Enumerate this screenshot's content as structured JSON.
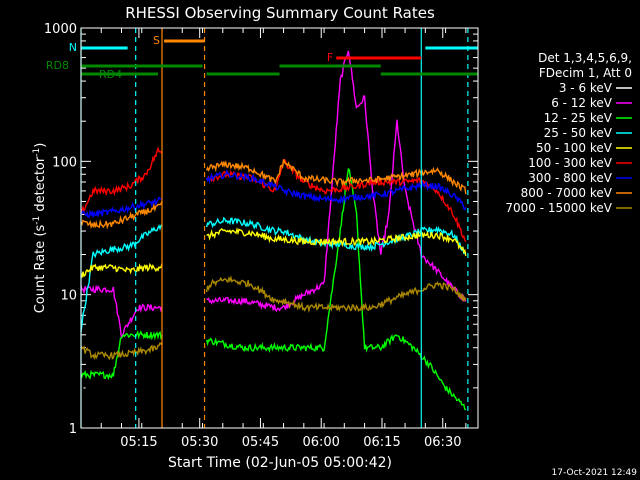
{
  "chart_data": {
    "type": "line",
    "title": "RHESSI Observing Summary Count Rates",
    "xlabel": "Start Time (02-Jun-05 05:00:42)",
    "ylabel": "Count Rate (s⁻¹ detector⁻¹)",
    "ylabel_text": "Count Rate (s",
    "ylabel_sup1": "-1",
    "ylabel_mid": " detector",
    "ylabel_sup2": "-1",
    "ylabel_end": ")",
    "yscale": "log",
    "ylim": [
      1,
      1000
    ],
    "xlim_minutes": [
      0,
      98
    ],
    "x_ticks": [
      {
        "label": "05:15",
        "min": 14.3
      },
      {
        "label": "05:30",
        "min": 29.3
      },
      {
        "label": "05:45",
        "min": 44.3
      },
      {
        "label": "06:00",
        "min": 59.3
      },
      {
        "label": "06:15",
        "min": 74.3
      },
      {
        "label": "06:30",
        "min": 89.3
      }
    ],
    "y_ticks": [
      {
        "label": "1",
        "value": 1
      },
      {
        "label": "10",
        "value": 10
      },
      {
        "label": "100",
        "value": 100
      },
      {
        "label": "1000",
        "value": 1000
      }
    ],
    "legend_header": [
      "Det 1,3,4,5,6,9,",
      "FDecim 1, Att 0"
    ],
    "series": [
      {
        "name": "3 - 6 keV",
        "color": "#000000",
        "values": [
          [
            0,
            2
          ],
          [
            8,
            2
          ],
          [
            10,
            1.4
          ],
          [
            14,
            1.4
          ],
          [
            19,
            1.4
          ],
          [
            32,
            7
          ],
          [
            40,
            7
          ],
          [
            48,
            6
          ],
          [
            50,
            3
          ],
          [
            55,
            4
          ],
          [
            60,
            6
          ],
          [
            64,
            250
          ],
          [
            66,
            420
          ],
          [
            68,
            150
          ],
          [
            70,
            140
          ],
          [
            72,
            40
          ],
          [
            74,
            14
          ],
          [
            76,
            20
          ],
          [
            78,
            70
          ],
          [
            80,
            30
          ],
          [
            84,
            8
          ],
          [
            88,
            6
          ],
          [
            92,
            4
          ],
          [
            95,
            3
          ]
        ]
      },
      {
        "name": "6 - 12 keV",
        "color": "#ff00ff",
        "values": [
          [
            0,
            11
          ],
          [
            8,
            11
          ],
          [
            10,
            5
          ],
          [
            14,
            8
          ],
          [
            19,
            8
          ],
          [
            32,
            9
          ],
          [
            40,
            9
          ],
          [
            48,
            8
          ],
          [
            50,
            8
          ],
          [
            55,
            10
          ],
          [
            60,
            12
          ],
          [
            64,
            400
          ],
          [
            66,
            700
          ],
          [
            68,
            250
          ],
          [
            70,
            300
          ],
          [
            72,
            60
          ],
          [
            74,
            20
          ],
          [
            76,
            40
          ],
          [
            78,
            200
          ],
          [
            80,
            60
          ],
          [
            84,
            20
          ],
          [
            88,
            15
          ],
          [
            92,
            11
          ],
          [
            95,
            9
          ]
        ]
      },
      {
        "name": "12 - 25 keV",
        "color": "#00ff00",
        "values": [
          [
            0,
            2.5
          ],
          [
            8,
            2.5
          ],
          [
            10,
            5
          ],
          [
            14,
            5
          ],
          [
            19,
            5
          ],
          [
            32,
            4.5
          ],
          [
            40,
            4
          ],
          [
            48,
            4
          ],
          [
            50,
            4
          ],
          [
            55,
            4
          ],
          [
            60,
            4
          ],
          [
            64,
            30
          ],
          [
            66,
            90
          ],
          [
            68,
            40
          ],
          [
            70,
            4
          ],
          [
            74,
            4
          ],
          [
            78,
            5
          ],
          [
            82,
            4
          ],
          [
            86,
            3
          ],
          [
            90,
            2
          ],
          [
            95,
            1.4
          ]
        ]
      },
      {
        "name": "25 - 50 keV",
        "color": "#00ffff",
        "values": [
          [
            0,
            5.5
          ],
          [
            3,
            20
          ],
          [
            8,
            22
          ],
          [
            12,
            23
          ],
          [
            16,
            28
          ],
          [
            19,
            32
          ],
          [
            32,
            34
          ],
          [
            36,
            36
          ],
          [
            42,
            34
          ],
          [
            48,
            30
          ],
          [
            50,
            30
          ],
          [
            55,
            26
          ],
          [
            60,
            24
          ],
          [
            64,
            24
          ],
          [
            68,
            23
          ],
          [
            72,
            23
          ],
          [
            76,
            25
          ],
          [
            80,
            27
          ],
          [
            84,
            30
          ],
          [
            88,
            31
          ],
          [
            92,
            28
          ],
          [
            95,
            20
          ]
        ]
      },
      {
        "name": "50 - 100 keV",
        "color": "#ffff00",
        "values": [
          [
            0,
            14
          ],
          [
            3,
            16
          ],
          [
            8,
            16
          ],
          [
            12,
            15
          ],
          [
            16,
            16
          ],
          [
            19,
            16
          ],
          [
            32,
            28
          ],
          [
            36,
            30
          ],
          [
            42,
            29
          ],
          [
            48,
            26
          ],
          [
            50,
            26
          ],
          [
            55,
            25
          ],
          [
            60,
            25
          ],
          [
            64,
            25
          ],
          [
            68,
            25
          ],
          [
            72,
            25
          ],
          [
            76,
            26
          ],
          [
            80,
            27
          ],
          [
            84,
            28
          ],
          [
            88,
            28
          ],
          [
            92,
            26
          ],
          [
            95,
            20
          ]
        ]
      },
      {
        "name": "100 - 300 keV",
        "color": "#ff0000",
        "values": [
          [
            0,
            40
          ],
          [
            3,
            60
          ],
          [
            8,
            60
          ],
          [
            12,
            65
          ],
          [
            16,
            80
          ],
          [
            19,
            120
          ],
          [
            32,
            75
          ],
          [
            36,
            80
          ],
          [
            42,
            75
          ],
          [
            48,
            60
          ],
          [
            50,
            100
          ],
          [
            55,
            70
          ],
          [
            60,
            60
          ],
          [
            64,
            62
          ],
          [
            68,
            65
          ],
          [
            72,
            70
          ],
          [
            76,
            70
          ],
          [
            80,
            70
          ],
          [
            84,
            72
          ],
          [
            88,
            60
          ],
          [
            92,
            40
          ],
          [
            95,
            25
          ]
        ]
      },
      {
        "name": "300 - 800 keV",
        "color": "#0000ff",
        "values": [
          [
            0,
            40
          ],
          [
            3,
            40
          ],
          [
            8,
            42
          ],
          [
            12,
            45
          ],
          [
            16,
            48
          ],
          [
            19,
            50
          ],
          [
            32,
            75
          ],
          [
            36,
            80
          ],
          [
            42,
            75
          ],
          [
            48,
            65
          ],
          [
            50,
            60
          ],
          [
            55,
            55
          ],
          [
            60,
            52
          ],
          [
            64,
            52
          ],
          [
            68,
            54
          ],
          [
            72,
            55
          ],
          [
            76,
            58
          ],
          [
            80,
            62
          ],
          [
            84,
            66
          ],
          [
            88,
            65
          ],
          [
            92,
            55
          ],
          [
            95,
            45
          ]
        ]
      },
      {
        "name": "800 - 7000 keV",
        "color": "#ff8800",
        "values": [
          [
            0,
            35
          ],
          [
            3,
            33
          ],
          [
            8,
            34
          ],
          [
            12,
            38
          ],
          [
            16,
            42
          ],
          [
            19,
            45
          ],
          [
            32,
            90
          ],
          [
            36,
            95
          ],
          [
            42,
            88
          ],
          [
            48,
            70
          ],
          [
            50,
            100
          ],
          [
            55,
            75
          ],
          [
            60,
            72
          ],
          [
            64,
            70
          ],
          [
            68,
            72
          ],
          [
            72,
            72
          ],
          [
            76,
            75
          ],
          [
            80,
            78
          ],
          [
            84,
            82
          ],
          [
            88,
            86
          ],
          [
            92,
            70
          ],
          [
            95,
            60
          ]
        ]
      },
      {
        "name": "7000 - 15000 keV",
        "color": "#aa8800",
        "values": [
          [
            0,
            4
          ],
          [
            3,
            3.5
          ],
          [
            8,
            3.5
          ],
          [
            12,
            3.6
          ],
          [
            16,
            3.8
          ],
          [
            19,
            4
          ],
          [
            32,
            12
          ],
          [
            36,
            13
          ],
          [
            42,
            12
          ],
          [
            48,
            9
          ],
          [
            50,
            9
          ],
          [
            55,
            8
          ],
          [
            60,
            8
          ],
          [
            64,
            8
          ],
          [
            68,
            8
          ],
          [
            72,
            8
          ],
          [
            76,
            9
          ],
          [
            80,
            10
          ],
          [
            84,
            11
          ],
          [
            88,
            12
          ],
          [
            92,
            11
          ],
          [
            95,
            9
          ]
        ]
      }
    ],
    "flags": [
      {
        "label": "N",
        "color": "#00ffff",
        "segments": [
          [
            0,
            11.5
          ],
          [
            85,
            98
          ]
        ]
      },
      {
        "label": "S",
        "color": "#ff8800",
        "segments": [
          [
            20.5,
            30.5
          ]
        ]
      },
      {
        "label": "F",
        "color": "#ff0000",
        "segments": [
          [
            63,
            84
          ]
        ]
      },
      {
        "label": "RD8",
        "color": "#008800",
        "segments": [
          [
            0,
            30
          ],
          [
            49,
            74
          ]
        ]
      },
      {
        "label": "RD4",
        "color": "#008800",
        "segments": [
          [
            0,
            19
          ],
          [
            31,
            49
          ],
          [
            74,
            98
          ]
        ]
      }
    ],
    "vlines": [
      {
        "min": 0,
        "color": "#00ffff",
        "style": "solid"
      },
      {
        "min": 13.5,
        "color": "#00ffff",
        "style": "dashed"
      },
      {
        "min": 20,
        "color": "#ff8800",
        "style": "solid"
      },
      {
        "min": 30.5,
        "color": "#ff8800",
        "style": "dashed"
      },
      {
        "min": 84,
        "color": "#00ffff",
        "style": "solid"
      },
      {
        "min": 95.5,
        "color": "#00ffff",
        "style": "dashed"
      }
    ],
    "timestamp": "17-Oct-2021 12:49"
  }
}
